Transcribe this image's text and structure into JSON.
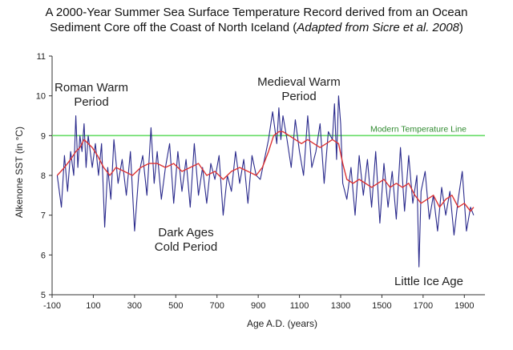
{
  "title": {
    "line1": "A 2000-Year Summer Sea Surface Temperature Record derived from an Ocean",
    "line2_main": "Sediment Core off the Coast of North Iceland (",
    "line2_italic": "Adapted from Sicre et al. 2008",
    "line2_end": ")"
  },
  "chart_data": {
    "type": "line",
    "xlabel": "Age A.D. (years)",
    "ylabel": "Alkenone SST (in °C)",
    "xlim": [
      -100,
      2000
    ],
    "ylim": [
      5,
      11
    ],
    "x_ticks": [
      "-100",
      "100",
      "300",
      "500",
      "700",
      "900",
      "1100",
      "1300",
      "1500",
      "1700",
      "1900"
    ],
    "y_ticks": [
      "5",
      "6",
      "7",
      "8",
      "9",
      "10",
      "11"
    ],
    "grid": false,
    "reference_line": {
      "label": "Modern Temperature Line",
      "y": 9.0,
      "color": "#66dd66"
    },
    "series": [
      {
        "color": "#2a2a8c",
        "x": [
          -75,
          -55,
          -40,
          -25,
          -10,
          5,
          15,
          25,
          35,
          45,
          55,
          65,
          75,
          85,
          95,
          110,
          125,
          140,
          155,
          170,
          185,
          200,
          220,
          240,
          260,
          280,
          300,
          320,
          340,
          360,
          380,
          395,
          410,
          430,
          450,
          470,
          490,
          510,
          530,
          550,
          570,
          590,
          610,
          630,
          650,
          670,
          690,
          710,
          730,
          750,
          770,
          790,
          810,
          830,
          850,
          870,
          890,
          910,
          930,
          950,
          970,
          990,
          1000,
          1010,
          1020,
          1040,
          1060,
          1080,
          1100,
          1120,
          1140,
          1160,
          1180,
          1200,
          1220,
          1240,
          1260,
          1270,
          1280,
          1290,
          1300,
          1310,
          1330,
          1350,
          1370,
          1390,
          1410,
          1430,
          1450,
          1470,
          1490,
          1510,
          1530,
          1550,
          1570,
          1590,
          1610,
          1630,
          1650,
          1670,
          1680,
          1690,
          1710,
          1730,
          1750,
          1770,
          1790,
          1810,
          1830,
          1850,
          1870,
          1890,
          1910,
          1930,
          1945
        ],
        "values": [
          8.0,
          7.2,
          8.5,
          7.6,
          8.6,
          8.0,
          9.5,
          8.2,
          9.0,
          8.6,
          9.3,
          8.2,
          9.0,
          8.6,
          8.2,
          8.8,
          8.0,
          8.8,
          6.7,
          8.2,
          7.4,
          8.9,
          7.8,
          8.4,
          7.5,
          8.6,
          6.6,
          8.0,
          8.5,
          7.5,
          9.2,
          7.8,
          8.6,
          7.4,
          8.2,
          8.8,
          7.3,
          8.6,
          7.6,
          8.4,
          7.2,
          8.8,
          7.5,
          8.2,
          7.3,
          8.3,
          7.9,
          8.5,
          7.0,
          8.0,
          7.6,
          8.6,
          7.8,
          8.4,
          7.3,
          8.5,
          8.0,
          7.9,
          8.4,
          8.9,
          9.6,
          8.8,
          9.7,
          8.9,
          9.5,
          8.9,
          8.2,
          9.4,
          8.6,
          8.0,
          9.5,
          8.2,
          8.6,
          9.3,
          7.8,
          9.1,
          8.9,
          9.8,
          8.4,
          10.0,
          9.3,
          7.8,
          7.4,
          8.2,
          7.0,
          8.5,
          7.5,
          8.4,
          7.2,
          8.6,
          6.8,
          8.3,
          7.2,
          8.1,
          6.9,
          8.7,
          7.1,
          8.5,
          7.3,
          8.0,
          5.7,
          7.6,
          8.1,
          6.9,
          7.5,
          6.6,
          7.7,
          7.0,
          7.6,
          6.5,
          7.4,
          8.1,
          6.6,
          7.2,
          7.0
        ]
      },
      {
        "color": "#dd3333",
        "x": [
          -75,
          -40,
          -10,
          15,
          35,
          55,
          75,
          95,
          120,
          150,
          180,
          210,
          250,
          290,
          330,
          370,
          410,
          450,
          490,
          530,
          570,
          610,
          650,
          690,
          730,
          770,
          810,
          850,
          890,
          920,
          950,
          975,
          1000,
          1020,
          1050,
          1080,
          1110,
          1140,
          1170,
          1200,
          1230,
          1260,
          1290,
          1310,
          1330,
          1360,
          1390,
          1420,
          1450,
          1480,
          1510,
          1540,
          1570,
          1600,
          1630,
          1660,
          1690,
          1720,
          1750,
          1780,
          1810,
          1840,
          1870,
          1900,
          1930,
          1945
        ],
        "values": [
          8.0,
          8.2,
          8.4,
          8.6,
          8.7,
          8.9,
          8.8,
          8.7,
          8.5,
          8.2,
          8.0,
          8.2,
          8.1,
          8.0,
          8.2,
          8.3,
          8.3,
          8.2,
          8.3,
          8.1,
          8.2,
          8.3,
          8.0,
          8.1,
          7.9,
          8.1,
          8.2,
          8.1,
          8.0,
          8.2,
          8.6,
          9.0,
          9.1,
          9.1,
          9.0,
          8.9,
          8.8,
          8.9,
          8.8,
          8.7,
          8.8,
          8.9,
          8.8,
          8.3,
          7.9,
          7.8,
          7.9,
          7.8,
          7.7,
          7.8,
          7.9,
          7.7,
          7.8,
          7.7,
          7.8,
          7.5,
          7.3,
          7.4,
          7.5,
          7.2,
          7.4,
          7.5,
          7.2,
          7.3,
          7.1,
          7.2
        ]
      }
    ],
    "annotations": [
      {
        "id": "roman",
        "lines": [
          "Roman Warm",
          "Period"
        ]
      },
      {
        "id": "medieval",
        "lines": [
          "Medieval Warm",
          "Period"
        ]
      },
      {
        "id": "darkages",
        "lines": [
          "Dark Ages",
          "Cold Period"
        ]
      },
      {
        "id": "littleice",
        "lines": [
          "Little Ice Age"
        ]
      }
    ]
  }
}
